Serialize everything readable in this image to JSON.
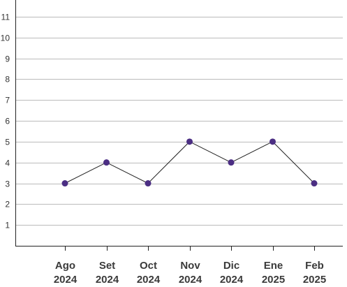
{
  "chart_data": {
    "type": "line",
    "categories": [
      "Ago 2024",
      "Set 2024",
      "Oct 2024",
      "Nov 2024",
      "Dic 2024",
      "Ene 2025",
      "Feb 2025"
    ],
    "category_lines": [
      [
        "Ago",
        "2024"
      ],
      [
        "Set",
        "2024"
      ],
      [
        "Oct",
        "2024"
      ],
      [
        "Nov",
        "2024"
      ],
      [
        "Dic",
        "2024"
      ],
      [
        "Ene",
        "2025"
      ],
      [
        "Feb",
        "2025"
      ]
    ],
    "series": [
      {
        "values": [
          3,
          4,
          3,
          5,
          4,
          5,
          3
        ]
      }
    ],
    "yticks": [
      1,
      2,
      3,
      4,
      5,
      6,
      7,
      8,
      9,
      10,
      11
    ],
    "ylim": [
      0,
      11.8
    ],
    "grid": true,
    "colors": {
      "marker": "#4b2e83",
      "line": "#222222",
      "grid": "#bbbbbb",
      "axis": "#222222"
    }
  }
}
